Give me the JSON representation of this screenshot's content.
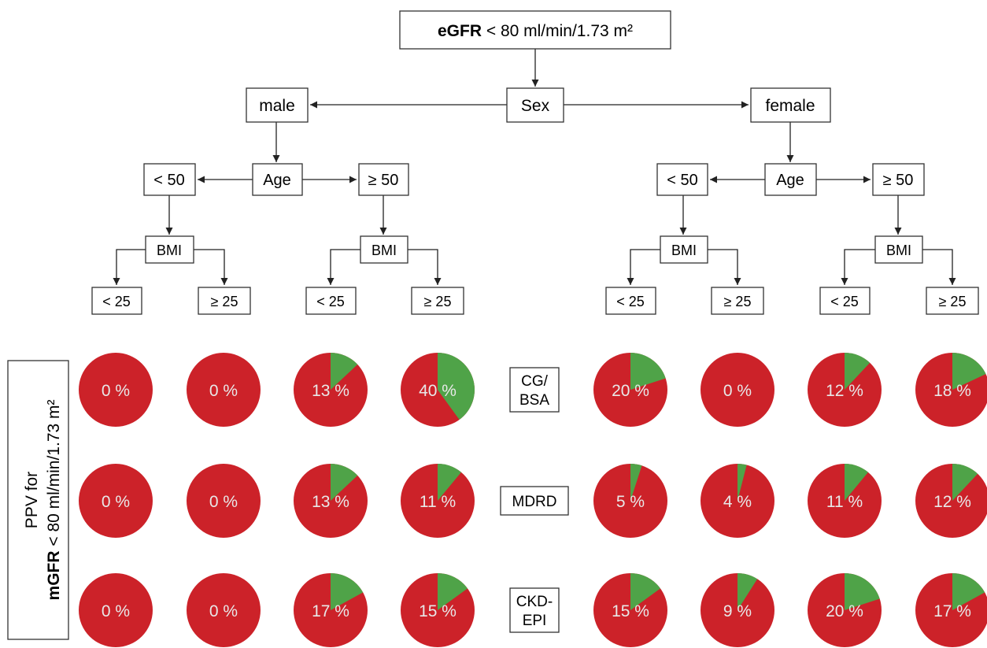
{
  "root": {
    "bold": "eGFR",
    "rest": " < 80 ml/min/1.73 m²"
  },
  "sex_label": "Sex",
  "male": {
    "label": "male",
    "age_label": "Age",
    "lt50": {
      "label": "< 50",
      "bmi": "BMI",
      "lt25": "< 25",
      "ge25": "≥ 25"
    },
    "ge50": {
      "label": "≥ 50",
      "bmi": "BMI",
      "lt25": "< 25",
      "ge25": "≥ 25"
    }
  },
  "female": {
    "label": "female",
    "age_label": "Age",
    "lt50": {
      "label": "< 50",
      "bmi": "BMI",
      "lt25": "< 25",
      "ge25": "≥ 25"
    },
    "ge50": {
      "label": "≥ 50",
      "bmi": "BMI",
      "lt25": "< 25",
      "ge25": "≥ 25"
    }
  },
  "y_label": {
    "line1": "PPV for",
    "line2_bold": "mGFR",
    "line2_rest": " < 80 ml/min/1.73 m²"
  },
  "colors": {
    "positive": "#4fa348",
    "negative": "#cc2229",
    "pct_text": "#e8e8e8",
    "line": "#222222"
  },
  "chart_data": {
    "type": "pie",
    "columns": [
      "male < 50 BMI < 25",
      "male < 50 BMI ≥ 25",
      "male ≥ 50 BMI < 25",
      "male ≥ 50 BMI ≥ 25",
      "female < 50 BMI < 25",
      "female < 50 BMI ≥ 25",
      "female ≥ 50 BMI < 25",
      "female ≥ 50 BMI ≥ 25"
    ],
    "rows": [
      {
        "label": [
          "CG/",
          "BSA"
        ],
        "values": [
          0,
          0,
          13,
          40,
          20,
          0,
          12,
          18
        ]
      },
      {
        "label": [
          "MDRD"
        ],
        "values": [
          0,
          0,
          13,
          11,
          5,
          4,
          11,
          12
        ]
      },
      {
        "label": [
          "CKD-",
          "EPI"
        ],
        "values": [
          0,
          0,
          17,
          15,
          15,
          9,
          20,
          17
        ]
      }
    ],
    "unit": " %"
  }
}
